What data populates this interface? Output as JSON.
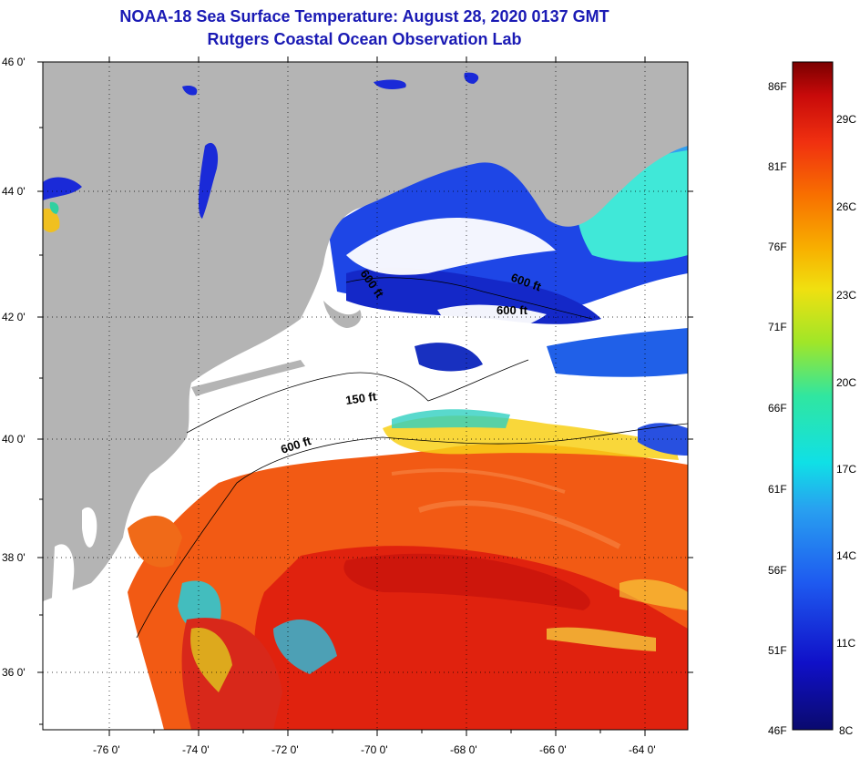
{
  "title_line1": "NOAA-18 Sea Surface Temperature:  August 28, 2020 0137 GMT",
  "title_line2": "Rutgers Coastal Ocean Observation Lab",
  "lat_labels": [
    "46 0'",
    "44 0'",
    "42 0'",
    "40 0'",
    "38 0'",
    "36 0'"
  ],
  "lon_labels": [
    "-76 0'",
    "-74 0'",
    "-72 0'",
    "-70 0'",
    "-68 0'",
    "-66 0'",
    "-64 0'"
  ],
  "contours": [
    "600 ft",
    "600 ft",
    "600 ft",
    "150 ft",
    "600 ft"
  ],
  "colorbar": {
    "fahrenheit": [
      "86F",
      "81F",
      "76F",
      "71F",
      "66F",
      "61F",
      "56F",
      "51F",
      "46F"
    ],
    "celsius": [
      "29C",
      "26C",
      "23C",
      "20C",
      "17C",
      "14C",
      "11C",
      "8C"
    ]
  },
  "colors": {
    "title": "#1a1ab4",
    "land": "#b4b4b4",
    "cloud": "#ffffff",
    "warm": "#f04a10",
    "gulfstream": "#e01a10",
    "cold": "#1a3ae8"
  }
}
